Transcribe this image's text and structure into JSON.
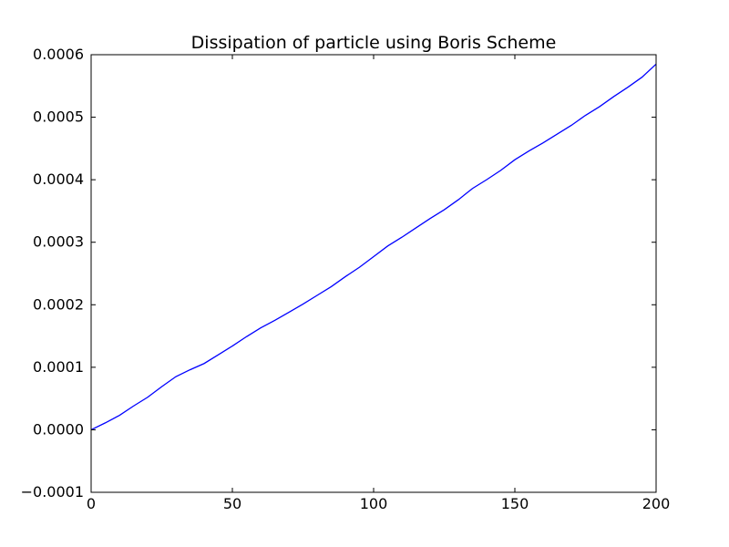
{
  "chart_data": {
    "type": "line",
    "title": "Dissipation of particle using Boris Scheme",
    "xlabel": "",
    "ylabel": "",
    "xlim": [
      0,
      200
    ],
    "ylim": [
      -0.0001,
      0.0006
    ],
    "grid": false,
    "legend": "none",
    "x_ticks": [
      0,
      50,
      100,
      150,
      200
    ],
    "y_ticks": [
      -0.0001,
      0.0,
      0.0001,
      0.0002,
      0.0003,
      0.0004,
      0.0005,
      0.0006
    ],
    "x_tick_labels": [
      "0",
      "50",
      "100",
      "150",
      "200"
    ],
    "y_tick_labels": [
      "−0.0001",
      "0.0000",
      "0.0001",
      "0.0002",
      "0.0003",
      "0.0004",
      "0.0005",
      "0.0006"
    ],
    "series": [
      {
        "color": "#0000ff",
        "x": [
          0,
          5,
          10,
          15,
          20,
          25,
          30,
          35,
          40,
          45,
          50,
          55,
          60,
          65,
          70,
          75,
          80,
          85,
          90,
          95,
          100,
          105,
          110,
          115,
          120,
          125,
          130,
          135,
          140,
          145,
          150,
          155,
          160,
          165,
          170,
          175,
          180,
          185,
          190,
          195,
          200
        ],
        "y": [
          0.0,
          1.1e-05,
          2.3e-05,
          3.8e-05,
          5.2e-05,
          6.9e-05,
          8.5e-05,
          9.6e-05,
          0.000106,
          0.00012,
          0.000134,
          0.000149,
          0.000163,
          0.000175,
          0.000188,
          0.000201,
          0.000215,
          0.000229,
          0.000245,
          0.00026,
          0.000277,
          0.000294,
          0.000308,
          0.000323,
          0.000338,
          0.000352,
          0.000368,
          0.000386,
          0.0004,
          0.000415,
          0.000432,
          0.000446,
          0.000459,
          0.000473,
          0.000487,
          0.000503,
          0.000517,
          0.000533,
          0.000548,
          0.000564,
          0.000585
        ]
      }
    ]
  }
}
